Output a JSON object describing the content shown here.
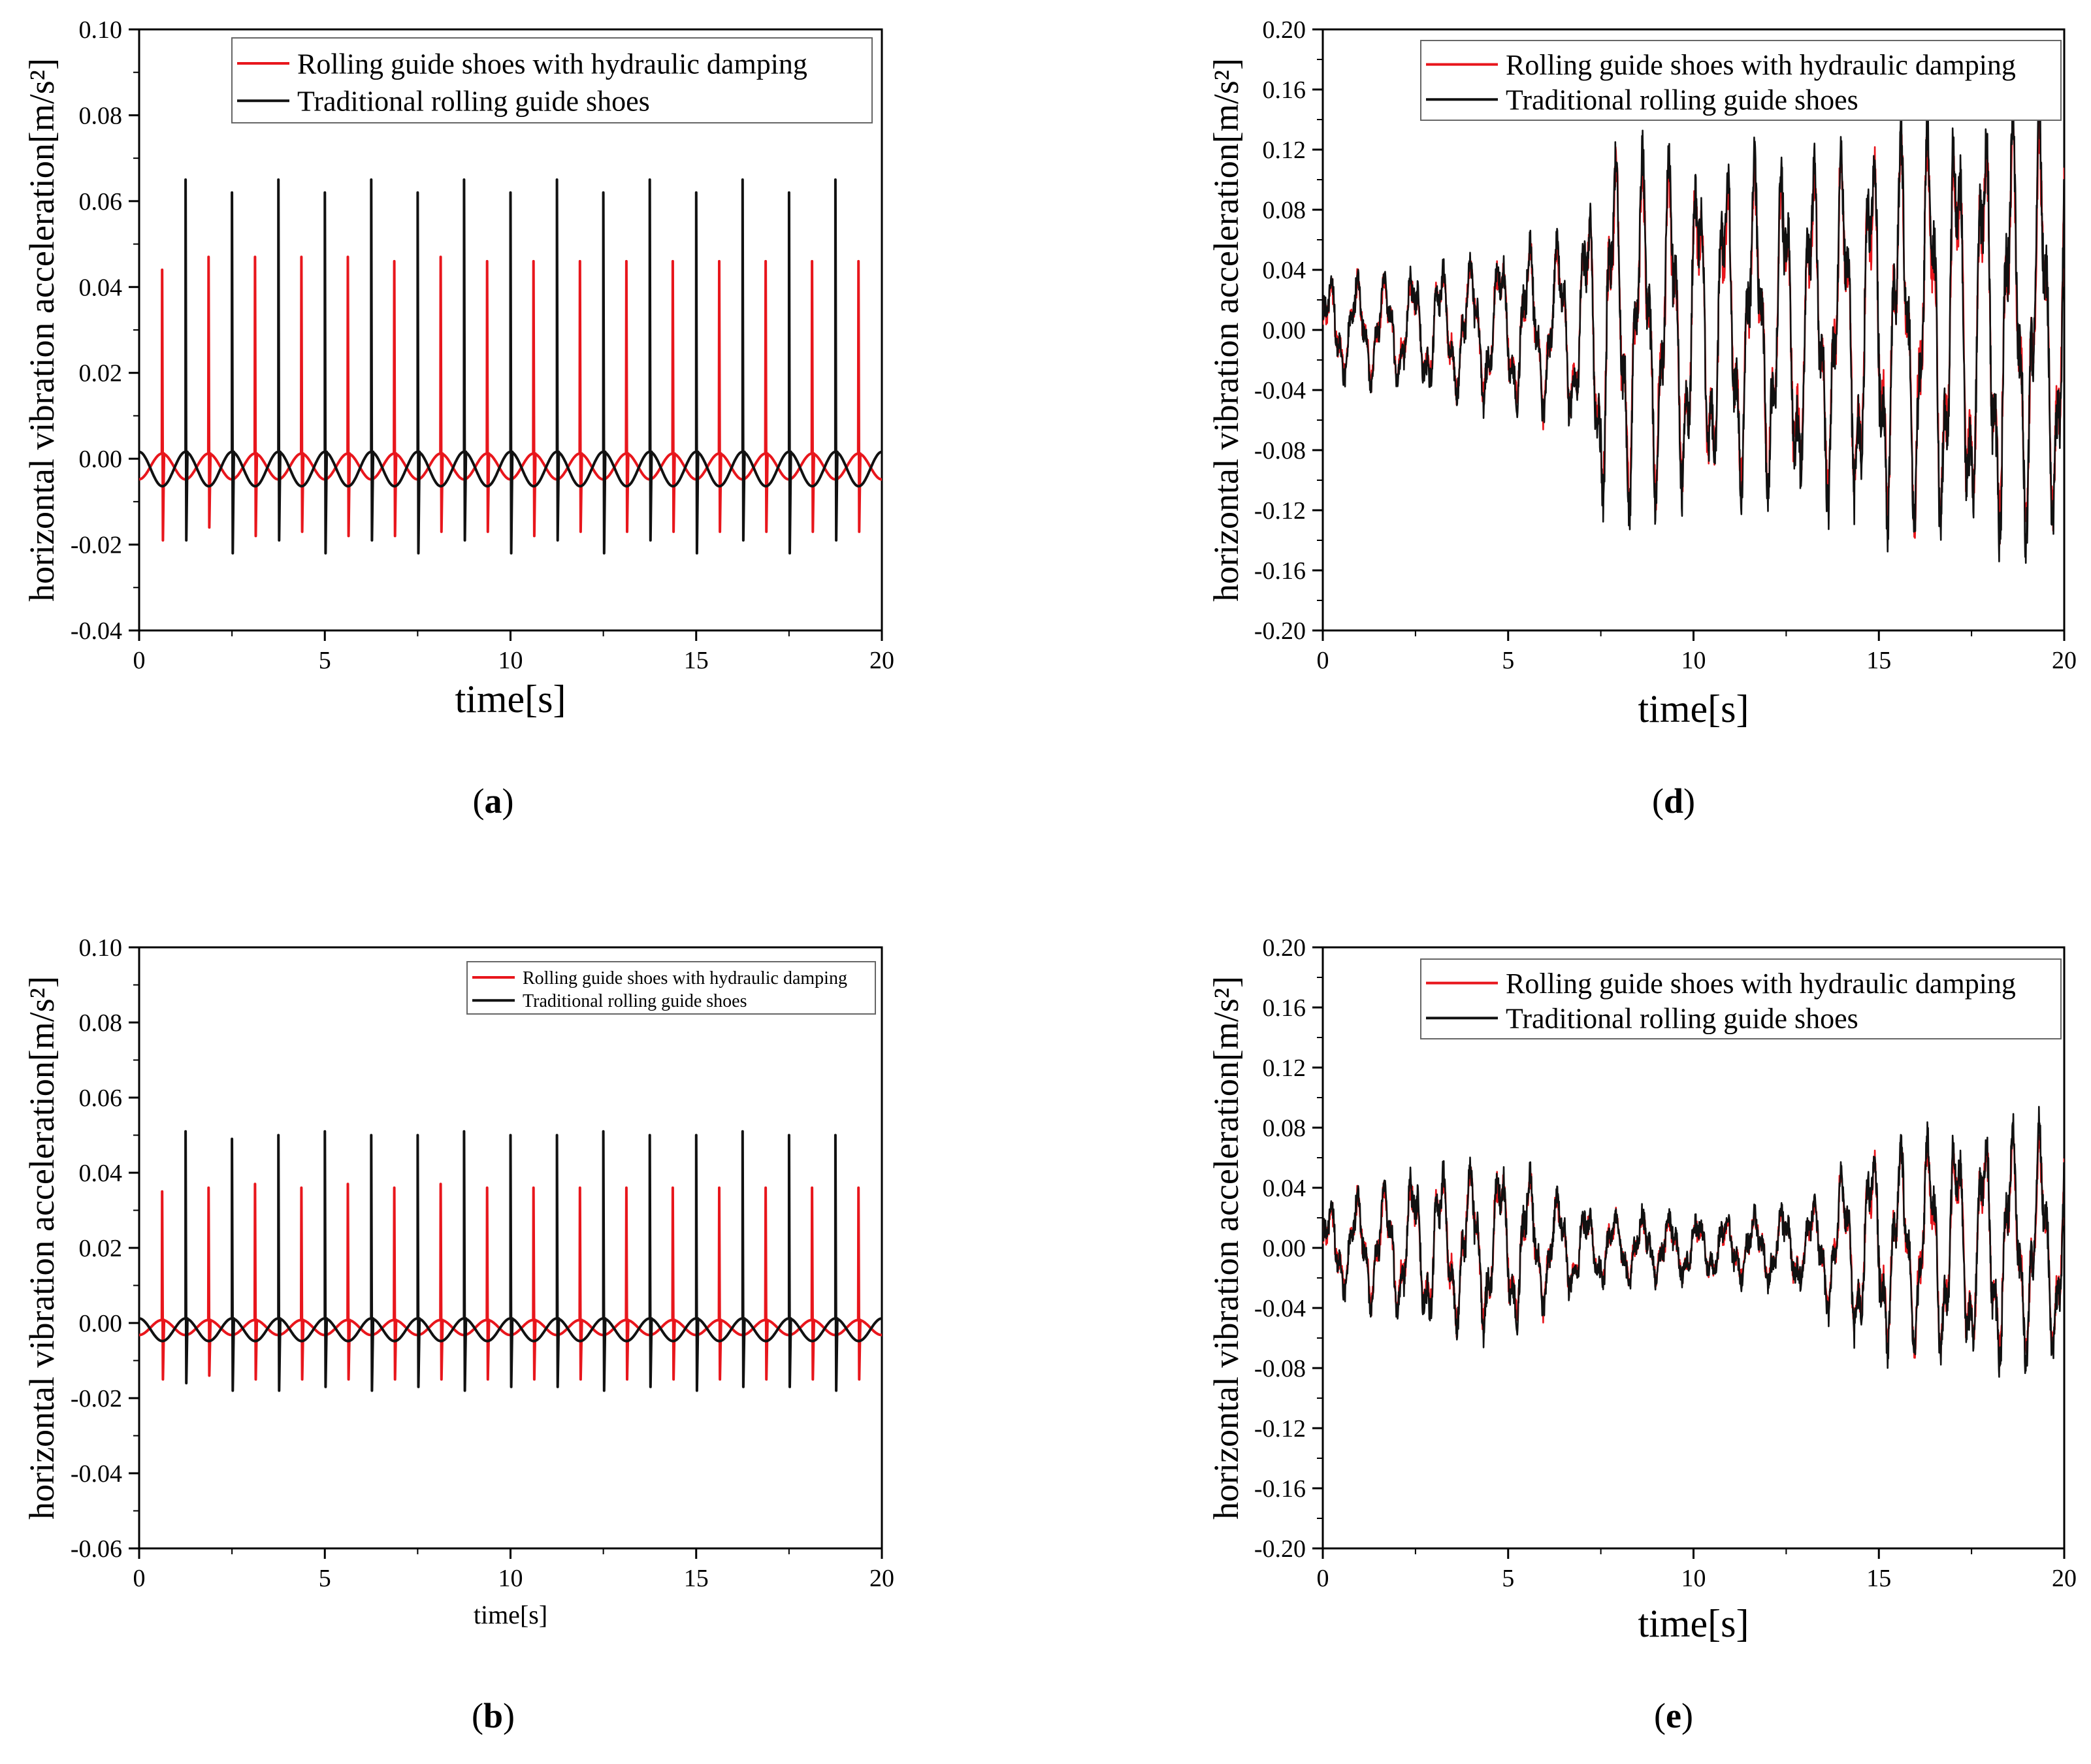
{
  "figure": {
    "caption_labels": [
      "a",
      "d",
      "b",
      "e"
    ]
  },
  "colors": {
    "hydraulic": "#e8161c",
    "traditional": "#111111",
    "axis": "#000000",
    "background": "#ffffff"
  },
  "chart_data": [
    {
      "id": "a",
      "type": "line",
      "caption": "a",
      "title": "",
      "xlabel": "time[s]",
      "ylabel": "horizontal vibration acceleration[m/s²]",
      "xlim": [
        0,
        20
      ],
      "ylim": [
        -0.04,
        0.1
      ],
      "xticks": [
        "0",
        "5",
        "10",
        "15",
        "20"
      ],
      "yticks": [
        "-0.04",
        "-0.02",
        "0.00",
        "0.02",
        "0.04",
        "0.06",
        "0.08",
        "0.10"
      ],
      "legend_position": "top-right",
      "signal_kind": "impulse",
      "series": [
        {
          "name": "Rolling guide shoes with hydraulic damping",
          "color": "#e8161c",
          "peak_times": [
            0.62,
            1.87,
            3.12,
            4.37,
            5.62,
            6.87,
            8.12,
            9.37,
            10.62,
            11.87,
            13.12,
            14.37,
            15.62,
            16.87,
            18.12,
            19.37
          ],
          "peak_values": [
            0.044,
            0.047,
            0.047,
            0.047,
            0.047,
            0.046,
            0.047,
            0.046,
            0.046,
            0.046,
            0.046,
            0.046,
            0.046,
            0.046,
            0.046,
            0.046
          ],
          "trough_values": [
            -0.019,
            -0.016,
            -0.018,
            -0.017,
            -0.018,
            -0.018,
            -0.017,
            -0.017,
            -0.018,
            -0.017,
            -0.017,
            -0.017,
            -0.017,
            -0.017,
            -0.017,
            -0.017
          ],
          "baseline_amplitude": 0.003,
          "period": 1.25
        },
        {
          "name": "Traditional rolling guide shoes",
          "color": "#111111",
          "peak_times": [
            1.25,
            2.5,
            3.75,
            5.0,
            6.25,
            7.5,
            8.75,
            10.0,
            11.25,
            12.5,
            13.75,
            15.0,
            16.25,
            17.5,
            18.75
          ],
          "peak_values": [
            0.065,
            0.062,
            0.065,
            0.062,
            0.065,
            0.062,
            0.065,
            0.062,
            0.065,
            0.062,
            0.065,
            0.062,
            0.065,
            0.062,
            0.065
          ],
          "trough_values": [
            -0.019,
            -0.022,
            -0.019,
            -0.022,
            -0.019,
            -0.022,
            -0.019,
            -0.022,
            -0.019,
            -0.022,
            -0.019,
            -0.022,
            -0.019,
            -0.022,
            -0.019
          ],
          "baseline_amplitude": 0.004,
          "period": 1.25
        }
      ]
    },
    {
      "id": "d",
      "type": "line",
      "caption": "d",
      "title": "",
      "xlabel": "time[s]",
      "ylabel": "horizontal vibration acceleration[m/s²]",
      "xlim": [
        0,
        20
      ],
      "ylim": [
        -0.2,
        0.2
      ],
      "xticks": [
        "0",
        "5",
        "10",
        "15",
        "20"
      ],
      "yticks": [
        "-0.20",
        "-0.16",
        "-0.12",
        "-0.08",
        "-0.04",
        "0.00",
        "0.04",
        "0.08",
        "0.12",
        "0.16",
        "0.20"
      ],
      "legend_position": "top-right",
      "signal_kind": "oscillation",
      "series": [
        {
          "name": "Rolling guide shoes with hydraulic damping",
          "color": "#e8161c",
          "scale": 0.92
        },
        {
          "name": "Traditional rolling guide shoes",
          "color": "#111111",
          "scale": 1.0
        }
      ],
      "envelope": {
        "times": [
          0,
          2.5,
          7,
          7.5,
          10,
          13,
          15,
          17,
          20
        ],
        "amplitudes": [
          0.025,
          0.03,
          0.05,
          0.095,
          0.085,
          0.085,
          0.1,
          0.11,
          0.11
        ]
      },
      "frequency_hz": 1.3
    },
    {
      "id": "b",
      "type": "line",
      "caption": "b",
      "title": "",
      "xlabel": "time[s]",
      "ylabel": "horizontal vibration acceleration[m/s²]",
      "xlim": [
        0,
        20
      ],
      "ylim": [
        -0.06,
        0.1
      ],
      "xticks": [
        "0",
        "5",
        "10",
        "15",
        "20"
      ],
      "yticks": [
        "-0.06",
        "-0.04",
        "-0.02",
        "0.00",
        "0.02",
        "0.04",
        "0.06",
        "0.08",
        "0.10"
      ],
      "legend_position": "top-right",
      "signal_kind": "impulse",
      "series": [
        {
          "name": "Rolling guide shoes with hydraulic damping",
          "color": "#e8161c",
          "peak_times": [
            0.62,
            1.87,
            3.12,
            4.37,
            5.62,
            6.87,
            8.12,
            9.37,
            10.62,
            11.87,
            13.12,
            14.37,
            15.62,
            16.87,
            18.12,
            19.37
          ],
          "peak_values": [
            0.035,
            0.036,
            0.037,
            0.036,
            0.037,
            0.036,
            0.037,
            0.036,
            0.036,
            0.036,
            0.036,
            0.036,
            0.036,
            0.036,
            0.036,
            0.036
          ],
          "trough_values": [
            -0.015,
            -0.014,
            -0.015,
            -0.015,
            -0.015,
            -0.015,
            -0.015,
            -0.015,
            -0.015,
            -0.015,
            -0.015,
            -0.015,
            -0.015,
            -0.015,
            -0.015,
            -0.015
          ],
          "baseline_amplitude": 0.002,
          "period": 1.25
        },
        {
          "name": "Traditional rolling guide shoes",
          "color": "#111111",
          "peak_times": [
            1.25,
            2.5,
            3.75,
            5.0,
            6.25,
            7.5,
            8.75,
            10.0,
            11.25,
            12.5,
            13.75,
            15.0,
            16.25,
            17.5,
            18.75
          ],
          "peak_values": [
            0.051,
            0.049,
            0.05,
            0.051,
            0.05,
            0.05,
            0.051,
            0.05,
            0.05,
            0.051,
            0.05,
            0.05,
            0.051,
            0.05,
            0.05
          ],
          "trough_values": [
            -0.016,
            -0.018,
            -0.018,
            -0.017,
            -0.018,
            -0.017,
            -0.018,
            -0.017,
            -0.017,
            -0.018,
            -0.017,
            -0.018,
            -0.017,
            -0.017,
            -0.018
          ],
          "baseline_amplitude": 0.003,
          "period": 1.25
        }
      ]
    },
    {
      "id": "e",
      "type": "line",
      "caption": "e",
      "title": "",
      "xlabel": "time[s]",
      "ylabel": "horizontal vibration acceleration[m/s²]",
      "xlim": [
        0,
        20
      ],
      "ylim": [
        -0.2,
        0.2
      ],
      "xticks": [
        "0",
        "5",
        "10",
        "15",
        "20"
      ],
      "yticks": [
        "-0.20",
        "-0.16",
        "-0.12",
        "-0.08",
        "-0.04",
        "0.00",
        "0.04",
        "0.08",
        "0.12",
        "0.16",
        "0.20"
      ],
      "legend_position": "top-right",
      "signal_kind": "oscillation",
      "series": [
        {
          "name": "Rolling guide shoes with hydraulic damping",
          "color": "#e8161c",
          "scale": 0.92
        },
        {
          "name": "Traditional rolling guide shoes",
          "color": "#111111",
          "scale": 1.0
        }
      ],
      "envelope": {
        "times": [
          0,
          2.5,
          5,
          7,
          10,
          13,
          14.5,
          17,
          20
        ],
        "amplitudes": [
          0.02,
          0.04,
          0.045,
          0.02,
          0.015,
          0.02,
          0.05,
          0.06,
          0.06
        ]
      },
      "frequency_hz": 1.3
    }
  ]
}
